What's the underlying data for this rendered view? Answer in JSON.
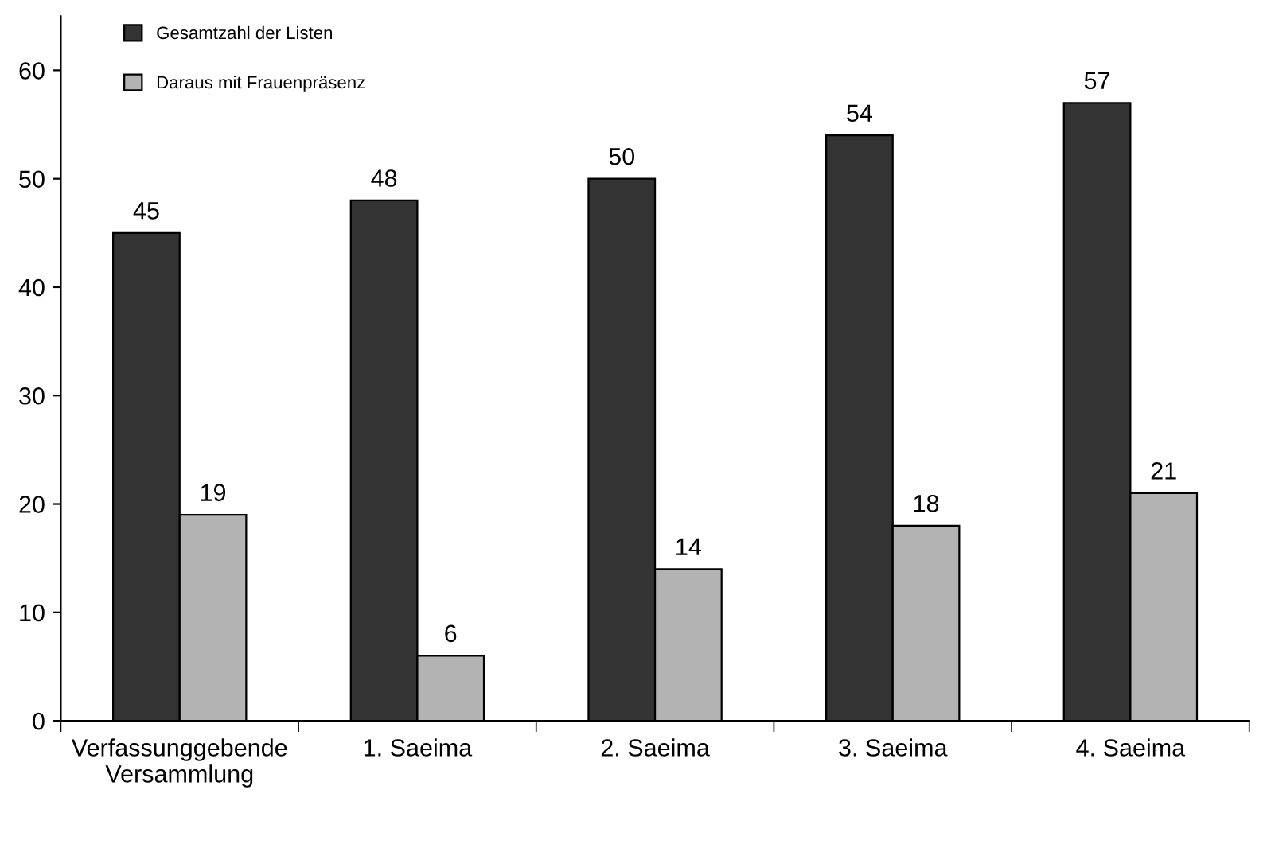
{
  "chart_data": {
    "type": "bar",
    "categories": [
      "Verfassunggebende\nVersammlung",
      "1. Saeima",
      "2. Saeima",
      "3. Saeima",
      "4. Saeima"
    ],
    "series": [
      {
        "name": "Gesamtzahl der Listen",
        "color": "#333333",
        "values": [
          45,
          48,
          50,
          54,
          57
        ]
      },
      {
        "name": "Daraus mit Frauenpräsenz",
        "color": "#b3b3b3",
        "values": [
          19,
          6,
          14,
          18,
          21
        ]
      }
    ],
    "ylim": [
      0,
      65
    ],
    "yticks": [
      0,
      10,
      20,
      30,
      40,
      50,
      60
    ],
    "grid": false,
    "legend": "top left",
    "data_labels": true
  }
}
